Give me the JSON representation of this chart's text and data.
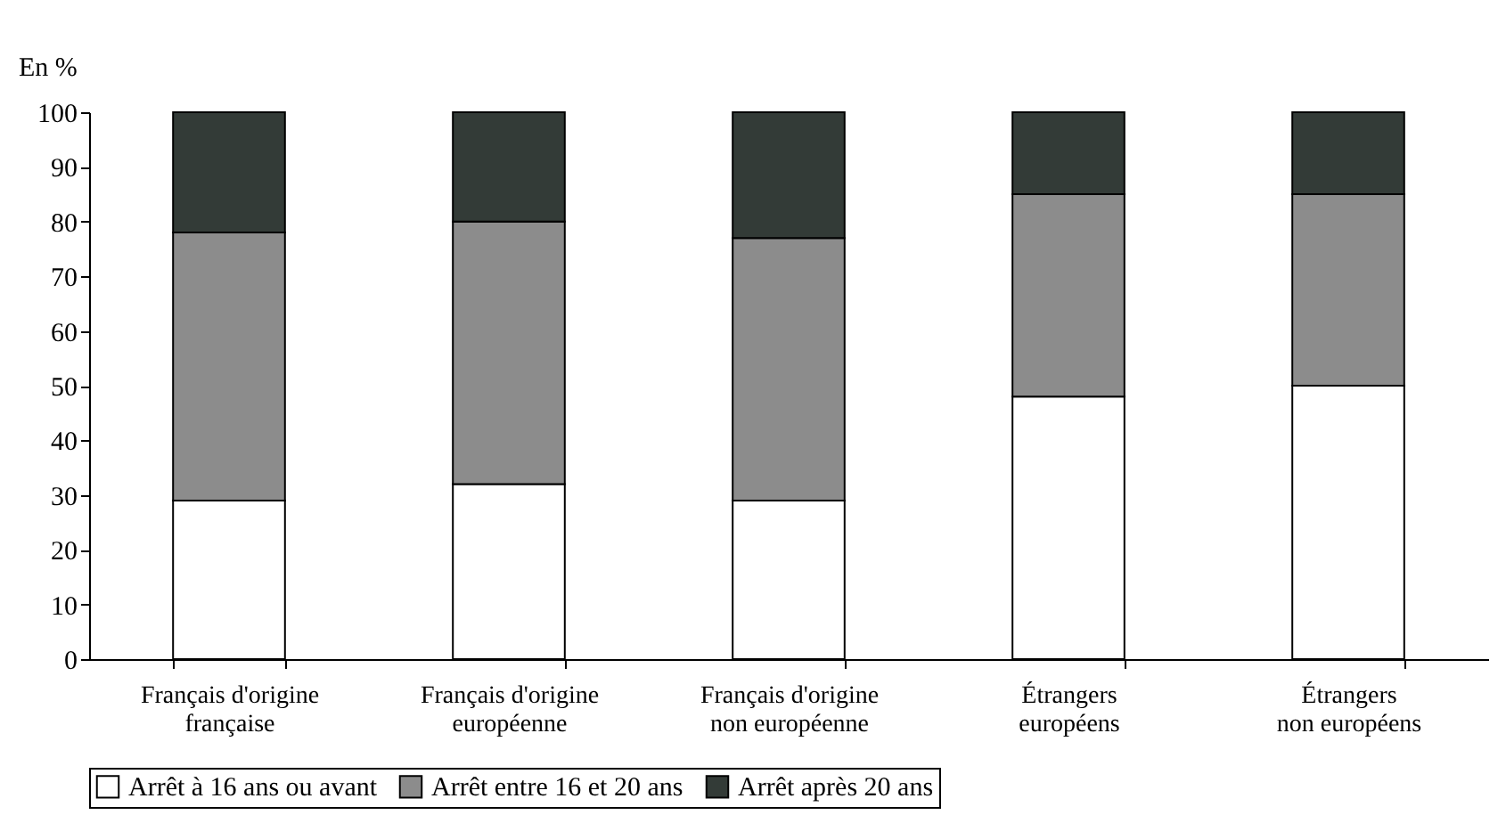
{
  "chart_data": {
    "type": "bar",
    "stacked": true,
    "ylabel": "En %",
    "categories": [
      "Français d'origine\nfrançaise",
      "Français d'origine\neuropéenne",
      "Français d'origine\nnon européenne",
      "Étrangers\neuropéens",
      "Étrangers\nnon européens"
    ],
    "series": [
      {
        "name": "Arrêt à 16 ans ou avant",
        "color": "#ffffff",
        "values": [
          29,
          32,
          29,
          48,
          50
        ]
      },
      {
        "name": "Arrêt entre 16 et 20 ans",
        "color": "#8c8c8c",
        "values": [
          49,
          48,
          48,
          37,
          35
        ]
      },
      {
        "name": "Arrêt après 20 ans",
        "color": "#333b37",
        "values": [
          22,
          20,
          23,
          15,
          15
        ]
      }
    ],
    "ylim": [
      0,
      100
    ],
    "yticks": [
      0,
      10,
      20,
      30,
      40,
      50,
      60,
      70,
      80,
      90,
      100
    ],
    "grid": false,
    "legend": "bottom"
  }
}
